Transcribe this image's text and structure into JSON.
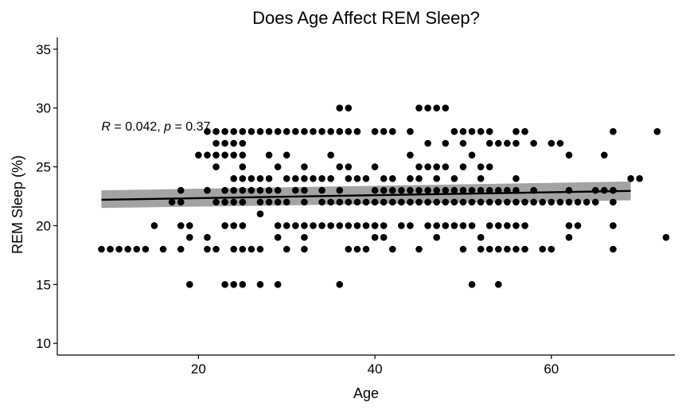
{
  "chart_data": {
    "type": "scatter",
    "title": "Does Age Affect REM Sleep?",
    "xlabel": "Age",
    "ylabel": "REM Sleep (%)",
    "xlim": [
      4,
      74
    ],
    "ylim": [
      9,
      36
    ],
    "xticks": [
      20,
      40,
      60
    ],
    "yticks": [
      10,
      15,
      20,
      25,
      30,
      35
    ],
    "grid": false,
    "annotation": {
      "r_symbol": "R",
      "r_text": " = 0.042, ",
      "p_symbol": "p",
      "p_text": " = 0.37",
      "x": 9,
      "y": 28.5
    },
    "regression": {
      "x": [
        9,
        69
      ],
      "y": [
        22.2,
        22.95
      ],
      "ci_low": [
        21.5,
        22.15
      ],
      "ci_high": [
        23.0,
        23.75
      ]
    },
    "points": [
      [
        9,
        18
      ],
      [
        10,
        18
      ],
      [
        11,
        18
      ],
      [
        12,
        18
      ],
      [
        13,
        18
      ],
      [
        14,
        18
      ],
      [
        15,
        20
      ],
      [
        16,
        18
      ],
      [
        17,
        22
      ],
      [
        18,
        18
      ],
      [
        18,
        20
      ],
      [
        18,
        22
      ],
      [
        18,
        23
      ],
      [
        19,
        15
      ],
      [
        19,
        19
      ],
      [
        19,
        20
      ],
      [
        20,
        26
      ],
      [
        21,
        26
      ],
      [
        21,
        28
      ],
      [
        21,
        23
      ],
      [
        21,
        19
      ],
      [
        21,
        18
      ],
      [
        22,
        28
      ],
      [
        22,
        27
      ],
      [
        22,
        26
      ],
      [
        22,
        25
      ],
      [
        22,
        22
      ],
      [
        22,
        18
      ],
      [
        23,
        15
      ],
      [
        23,
        20
      ],
      [
        23,
        22
      ],
      [
        23,
        23
      ],
      [
        23,
        26
      ],
      [
        23,
        27
      ],
      [
        23,
        28
      ],
      [
        24,
        15
      ],
      [
        24,
        18
      ],
      [
        24,
        20
      ],
      [
        24,
        22
      ],
      [
        24,
        23
      ],
      [
        24,
        24
      ],
      [
        24,
        26
      ],
      [
        24,
        27
      ],
      [
        24,
        28
      ],
      [
        25,
        15
      ],
      [
        25,
        18
      ],
      [
        25,
        20
      ],
      [
        25,
        22
      ],
      [
        25,
        23
      ],
      [
        25,
        24
      ],
      [
        25,
        25
      ],
      [
        25,
        26
      ],
      [
        25,
        27
      ],
      [
        25,
        28
      ],
      [
        26,
        18
      ],
      [
        26,
        23
      ],
      [
        26,
        24
      ],
      [
        26,
        28
      ],
      [
        27,
        15
      ],
      [
        27,
        18
      ],
      [
        27,
        21
      ],
      [
        27,
        22
      ],
      [
        27,
        23
      ],
      [
        27,
        24
      ],
      [
        27,
        28
      ],
      [
        28,
        22
      ],
      [
        28,
        23
      ],
      [
        28,
        24
      ],
      [
        28,
        26
      ],
      [
        28,
        28
      ],
      [
        29,
        15
      ],
      [
        29,
        19
      ],
      [
        29,
        20
      ],
      [
        29,
        22
      ],
      [
        29,
        23
      ],
      [
        29,
        25
      ],
      [
        29,
        28
      ],
      [
        30,
        18
      ],
      [
        30,
        20
      ],
      [
        30,
        22
      ],
      [
        30,
        24
      ],
      [
        30,
        26
      ],
      [
        30,
        28
      ],
      [
        31,
        20
      ],
      [
        31,
        23
      ],
      [
        31,
        24
      ],
      [
        31,
        28
      ],
      [
        32,
        18
      ],
      [
        32,
        19
      ],
      [
        32,
        20
      ],
      [
        32,
        22
      ],
      [
        32,
        23
      ],
      [
        32,
        24
      ],
      [
        32,
        25
      ],
      [
        32,
        28
      ],
      [
        33,
        20
      ],
      [
        33,
        24
      ],
      [
        33,
        28
      ],
      [
        34,
        20
      ],
      [
        34,
        22
      ],
      [
        34,
        23
      ],
      [
        34,
        24
      ],
      [
        34,
        28
      ],
      [
        35,
        20
      ],
      [
        35,
        22
      ],
      [
        35,
        24
      ],
      [
        35,
        26
      ],
      [
        35,
        28
      ],
      [
        36,
        15
      ],
      [
        36,
        20
      ],
      [
        36,
        22
      ],
      [
        36,
        23
      ],
      [
        36,
        25
      ],
      [
        36,
        28
      ],
      [
        36,
        30
      ],
      [
        37,
        18
      ],
      [
        37,
        20
      ],
      [
        37,
        22
      ],
      [
        37,
        24
      ],
      [
        37,
        25
      ],
      [
        37,
        28
      ],
      [
        37,
        30
      ],
      [
        38,
        18
      ],
      [
        38,
        20
      ],
      [
        38,
        22
      ],
      [
        38,
        24
      ],
      [
        38,
        28
      ],
      [
        39,
        18
      ],
      [
        39,
        20
      ],
      [
        39,
        22
      ],
      [
        39,
        24
      ],
      [
        40,
        19
      ],
      [
        40,
        20
      ],
      [
        40,
        22
      ],
      [
        40,
        23
      ],
      [
        40,
        25
      ],
      [
        40,
        28
      ],
      [
        41,
        19
      ],
      [
        41,
        20
      ],
      [
        41,
        22
      ],
      [
        41,
        23
      ],
      [
        41,
        24
      ],
      [
        41,
        28
      ],
      [
        42,
        18
      ],
      [
        42,
        22
      ],
      [
        42,
        23
      ],
      [
        42,
        24
      ],
      [
        42,
        28
      ],
      [
        43,
        20
      ],
      [
        43,
        22
      ],
      [
        43,
        23
      ],
      [
        44,
        20
      ],
      [
        44,
        22
      ],
      [
        44,
        23
      ],
      [
        44,
        24
      ],
      [
        44,
        26
      ],
      [
        44,
        28
      ],
      [
        45,
        18
      ],
      [
        45,
        22
      ],
      [
        45,
        23
      ],
      [
        45,
        24
      ],
      [
        45,
        25
      ],
      [
        45,
        30
      ],
      [
        46,
        20
      ],
      [
        46,
        22
      ],
      [
        46,
        23
      ],
      [
        46,
        25
      ],
      [
        46,
        27
      ],
      [
        46,
        30
      ],
      [
        47,
        19
      ],
      [
        47,
        20
      ],
      [
        47,
        22
      ],
      [
        47,
        23
      ],
      [
        47,
        24
      ],
      [
        47,
        25
      ],
      [
        47,
        30
      ],
      [
        48,
        20
      ],
      [
        48,
        22
      ],
      [
        48,
        23
      ],
      [
        48,
        25
      ],
      [
        48,
        27
      ],
      [
        48,
        30
      ],
      [
        49,
        20
      ],
      [
        49,
        22
      ],
      [
        49,
        23
      ],
      [
        49,
        24
      ],
      [
        49,
        28
      ],
      [
        50,
        18
      ],
      [
        50,
        20
      ],
      [
        50,
        22
      ],
      [
        50,
        23
      ],
      [
        50,
        25
      ],
      [
        50,
        27
      ],
      [
        50,
        28
      ],
      [
        51,
        15
      ],
      [
        51,
        20
      ],
      [
        51,
        22
      ],
      [
        51,
        23
      ],
      [
        51,
        26
      ],
      [
        51,
        28
      ],
      [
        52,
        18
      ],
      [
        52,
        19
      ],
      [
        52,
        22
      ],
      [
        52,
        23
      ],
      [
        52,
        24
      ],
      [
        52,
        25
      ],
      [
        52,
        28
      ],
      [
        53,
        18
      ],
      [
        53,
        20
      ],
      [
        53,
        22
      ],
      [
        53,
        23
      ],
      [
        53,
        25
      ],
      [
        53,
        27
      ],
      [
        53,
        28
      ],
      [
        54,
        15
      ],
      [
        54,
        18
      ],
      [
        54,
        20
      ],
      [
        54,
        22
      ],
      [
        54,
        23
      ],
      [
        54,
        27
      ],
      [
        55,
        18
      ],
      [
        55,
        20
      ],
      [
        55,
        22
      ],
      [
        55,
        23
      ],
      [
        55,
        27
      ],
      [
        56,
        18
      ],
      [
        56,
        20
      ],
      [
        56,
        22
      ],
      [
        56,
        23
      ],
      [
        56,
        24
      ],
      [
        56,
        27
      ],
      [
        56,
        28
      ],
      [
        57,
        18
      ],
      [
        57,
        20
      ],
      [
        57,
        22
      ],
      [
        57,
        28
      ],
      [
        58,
        22
      ],
      [
        58,
        23
      ],
      [
        58,
        27
      ],
      [
        59,
        18
      ],
      [
        59,
        22
      ],
      [
        60,
        18
      ],
      [
        60,
        22
      ],
      [
        60,
        27
      ],
      [
        61,
        22
      ],
      [
        61,
        27
      ],
      [
        62,
        19
      ],
      [
        62,
        20
      ],
      [
        62,
        22
      ],
      [
        62,
        23
      ],
      [
        62,
        26
      ],
      [
        63,
        20
      ],
      [
        63,
        22
      ],
      [
        64,
        22
      ],
      [
        65,
        22
      ],
      [
        65,
        23
      ],
      [
        66,
        26
      ],
      [
        66,
        23
      ],
      [
        67,
        18
      ],
      [
        67,
        20
      ],
      [
        67,
        22
      ],
      [
        67,
        23
      ],
      [
        67,
        28
      ],
      [
        69,
        24
      ],
      [
        70,
        24
      ],
      [
        72,
        28
      ],
      [
        73,
        19
      ]
    ]
  }
}
